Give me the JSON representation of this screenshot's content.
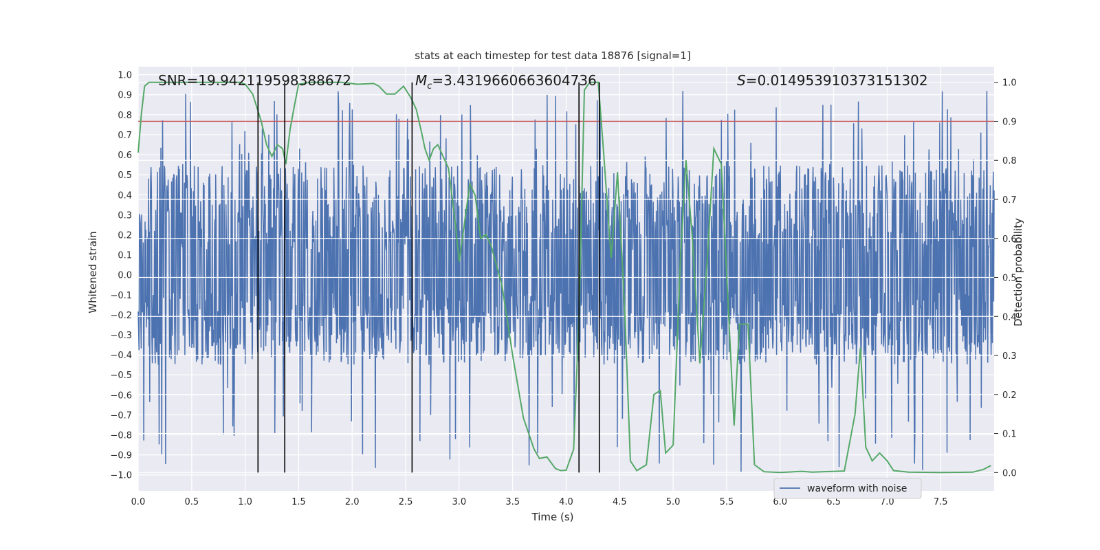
{
  "chart_data": {
    "type": "line",
    "title": "stats at each timestep for test data 18876 [signal=1]",
    "xlabel": "Time (s)",
    "ylabel_left": "Whitened strain",
    "ylabel_right": "Detection probability",
    "xlim": [
      0.0,
      8.0
    ],
    "ylim_left": [
      -1.08,
      1.04
    ],
    "ylim_right": [
      -0.047,
      1.04
    ],
    "x_ticks": [
      "0.0",
      "0.5",
      "1.0",
      "1.5",
      "2.0",
      "2.5",
      "3.0",
      "3.5",
      "4.0",
      "4.5",
      "5.0",
      "5.5",
      "6.0",
      "6.5",
      "7.0",
      "7.5"
    ],
    "y_left_ticks": [
      "1.0",
      "0.9",
      "0.8",
      "0.7",
      "0.6",
      "0.5",
      "0.4",
      "0.3",
      "0.2",
      "0.1",
      "0.0",
      "−0.1",
      "−0.2",
      "−0.3",
      "−0.4",
      "−0.5",
      "−0.6",
      "−0.7",
      "−0.8",
      "−0.9",
      "−1.0"
    ],
    "y_right_ticks": [
      "1.0",
      "0.9",
      "0.8",
      "0.7",
      "0.6",
      "0.5",
      "0.4",
      "0.3",
      "0.2",
      "0.1",
      "0.0"
    ],
    "annotations": {
      "snr": "SNR=19.942119598388672",
      "mc_symbol": "M",
      "mc_sub": "c",
      "mc_value": "=3.4319660663604736",
      "s_symbol": "S",
      "s_value": "=0.014953910373151302"
    },
    "legend": [
      {
        "label": "waveform with noise",
        "color": "#4c72b0"
      }
    ],
    "legend_position": "lower-right",
    "series": [
      {
        "name": "waveform with noise",
        "axis": "left",
        "color": "#4c72b0",
        "sample_count": 2000,
        "envelope": {
          "typical_min": -0.45,
          "typical_max": 0.55,
          "peak_min": -0.99,
          "peak_max": 0.92
        }
      },
      {
        "name": "detection probability",
        "axis": "right",
        "color": "#55a868",
        "points": [
          [
            0.0,
            0.82
          ],
          [
            0.03,
            0.92
          ],
          [
            0.06,
            0.99
          ],
          [
            0.1,
            1.0
          ],
          [
            0.5,
            1.0
          ],
          [
            0.8,
            1.0
          ],
          [
            0.95,
            1.0
          ],
          [
            1.0,
            0.995
          ],
          [
            1.07,
            0.97
          ],
          [
            1.15,
            0.9
          ],
          [
            1.2,
            0.84
          ],
          [
            1.25,
            0.81
          ],
          [
            1.3,
            0.84
          ],
          [
            1.35,
            0.83
          ],
          [
            1.38,
            0.79
          ],
          [
            1.42,
            0.88
          ],
          [
            1.46,
            0.94
          ],
          [
            1.5,
            0.995
          ],
          [
            1.6,
            1.0
          ],
          [
            1.9,
            1.0
          ],
          [
            2.05,
            0.995
          ],
          [
            2.2,
            0.997
          ],
          [
            2.25,
            0.99
          ],
          [
            2.32,
            0.97
          ],
          [
            2.4,
            0.97
          ],
          [
            2.48,
            0.99
          ],
          [
            2.55,
            0.96
          ],
          [
            2.6,
            0.93
          ],
          [
            2.65,
            0.87
          ],
          [
            2.68,
            0.83
          ],
          [
            2.72,
            0.8
          ],
          [
            2.76,
            0.83
          ],
          [
            2.8,
            0.84
          ],
          [
            2.9,
            0.78
          ],
          [
            2.96,
            0.65
          ],
          [
            3.0,
            0.54
          ],
          [
            3.04,
            0.62
          ],
          [
            3.1,
            0.74
          ],
          [
            3.15,
            0.71
          ],
          [
            3.2,
            0.6
          ],
          [
            3.25,
            0.61
          ],
          [
            3.3,
            0.58
          ],
          [
            3.4,
            0.48
          ],
          [
            3.5,
            0.3
          ],
          [
            3.6,
            0.14
          ],
          [
            3.7,
            0.06
          ],
          [
            3.75,
            0.036
          ],
          [
            3.82,
            0.04
          ],
          [
            3.9,
            0.01
          ],
          [
            3.95,
            0.005
          ],
          [
            4.0,
            0.006
          ],
          [
            4.07,
            0.06
          ],
          [
            4.12,
            0.4
          ],
          [
            4.17,
            0.98
          ],
          [
            4.22,
            1.0
          ],
          [
            4.3,
            1.0
          ],
          [
            4.35,
            0.82
          ],
          [
            4.42,
            0.55
          ],
          [
            4.48,
            0.77
          ],
          [
            4.55,
            0.4
          ],
          [
            4.6,
            0.03
          ],
          [
            4.66,
            0.005
          ],
          [
            4.75,
            0.02
          ],
          [
            4.82,
            0.2
          ],
          [
            4.88,
            0.21
          ],
          [
            4.93,
            0.05
          ],
          [
            5.0,
            0.07
          ],
          [
            5.07,
            0.56
          ],
          [
            5.12,
            0.8
          ],
          [
            5.18,
            0.6
          ],
          [
            5.25,
            0.28
          ],
          [
            5.32,
            0.55
          ],
          [
            5.38,
            0.83
          ],
          [
            5.45,
            0.79
          ],
          [
            5.52,
            0.4
          ],
          [
            5.57,
            0.12
          ],
          [
            5.62,
            0.38
          ],
          [
            5.7,
            0.38
          ],
          [
            5.76,
            0.02
          ],
          [
            5.85,
            0.002
          ],
          [
            6.0,
            0.0
          ],
          [
            6.2,
            0.003
          ],
          [
            6.3,
            0.001
          ],
          [
            6.6,
            0.004
          ],
          [
            6.7,
            0.15
          ],
          [
            6.75,
            0.32
          ],
          [
            6.8,
            0.065
          ],
          [
            6.86,
            0.03
          ],
          [
            6.93,
            0.05
          ],
          [
            7.0,
            0.03
          ],
          [
            7.06,
            0.005
          ],
          [
            7.2,
            0.001
          ],
          [
            7.5,
            0.0
          ],
          [
            7.8,
            0.001
          ],
          [
            7.9,
            0.008
          ],
          [
            7.97,
            0.018
          ]
        ]
      }
    ],
    "threshold": {
      "axis": "right",
      "value": 0.9,
      "color": "#c44e52"
    },
    "markers": {
      "x": [
        1.12,
        1.37,
        2.56,
        4.12,
        4.31
      ],
      "color": "#000000"
    }
  }
}
